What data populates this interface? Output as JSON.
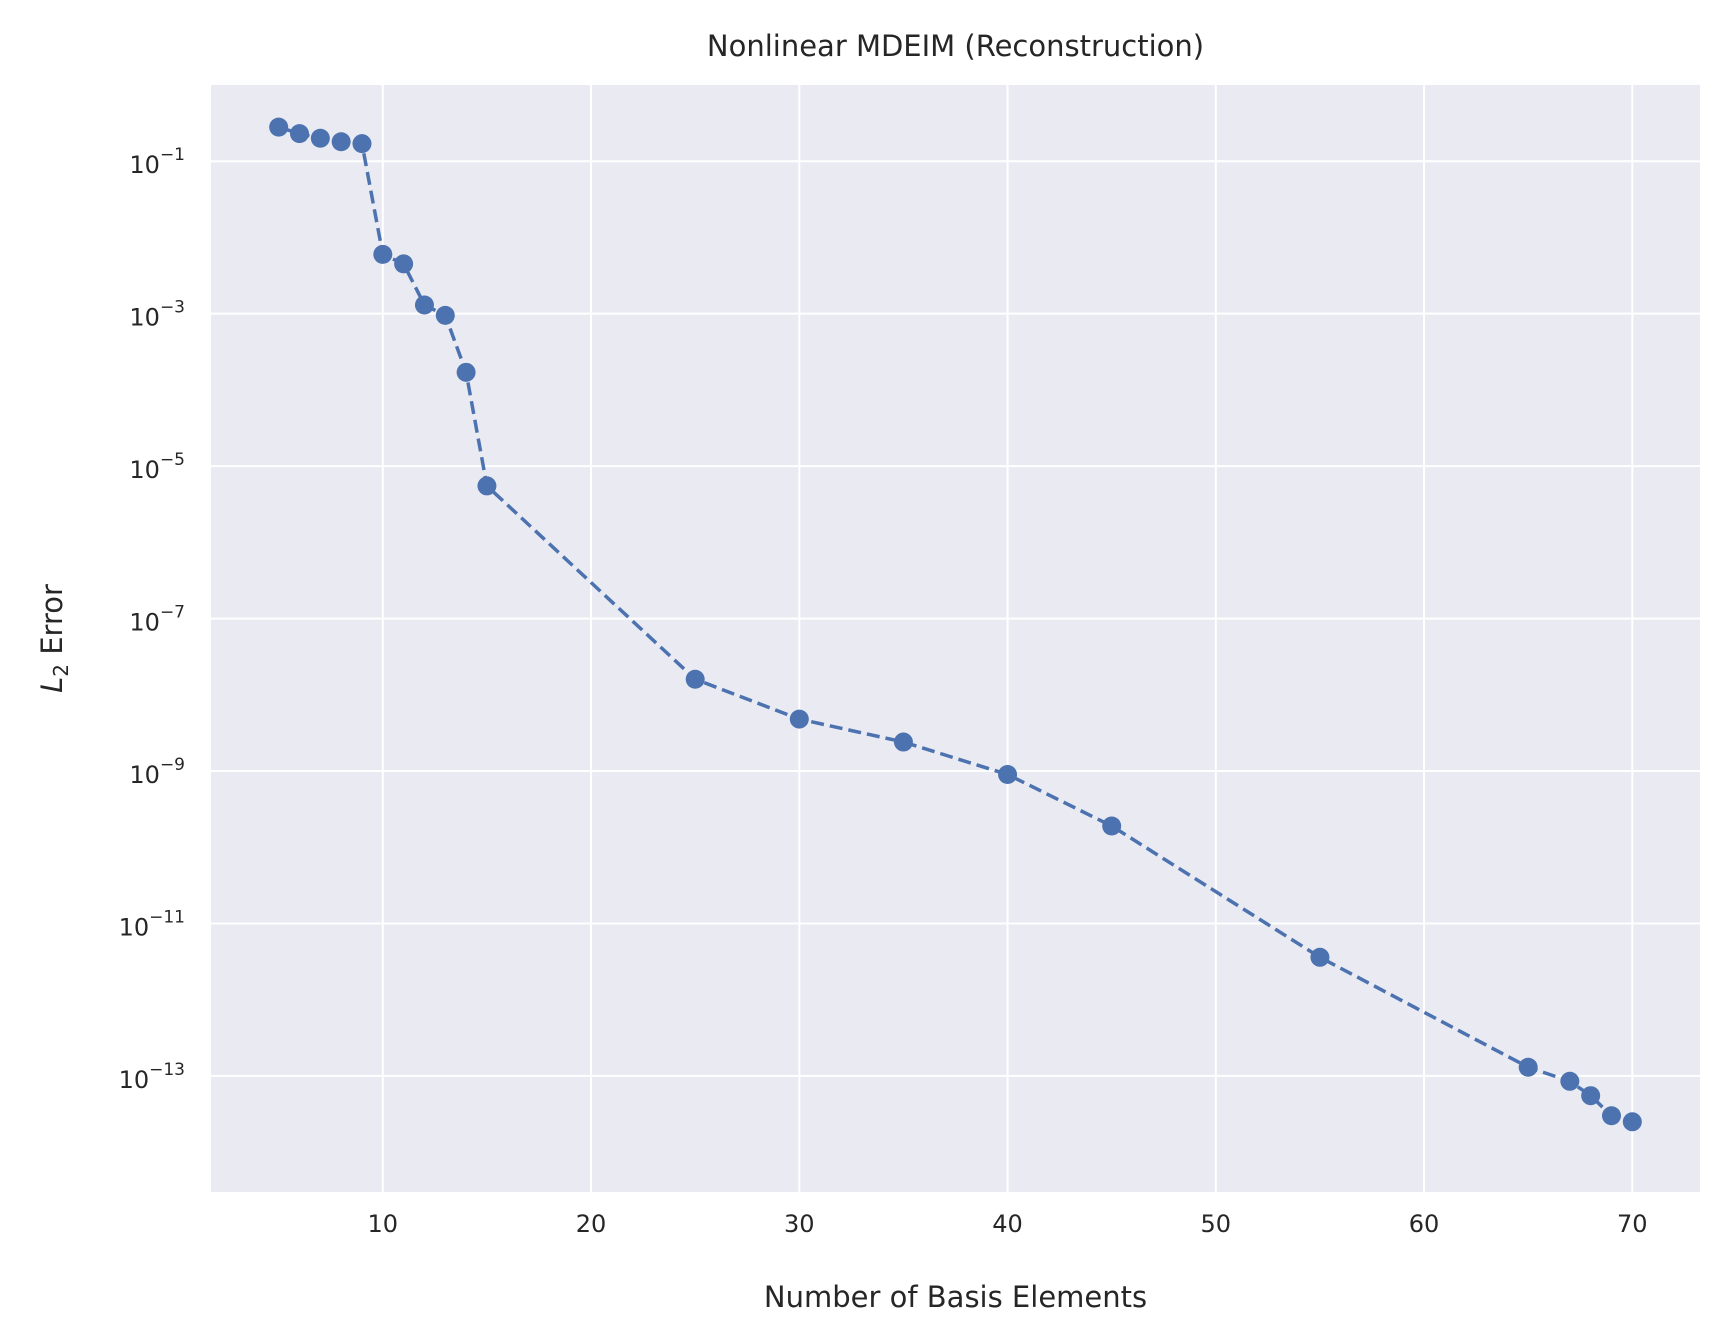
{
  "chart_data": {
    "type": "line",
    "title": "Nonlinear MDEIM (Reconstruction)",
    "xlabel": "Number of Basis Elements",
    "ylabel": {
      "base": "L",
      "subscript": "2",
      "rest": " Error"
    },
    "x_ticks": [
      10,
      20,
      30,
      40,
      50,
      60,
      70
    ],
    "y_ticks": [
      {
        "base": "10",
        "exponent": "−1",
        "value": 0.1
      },
      {
        "base": "10",
        "exponent": "−3",
        "value": 0.001
      },
      {
        "base": "10",
        "exponent": "−5",
        "value": 1e-05
      },
      {
        "base": "10",
        "exponent": "−7",
        "value": 1e-07
      },
      {
        "base": "10",
        "exponent": "−9",
        "value": 1e-09
      },
      {
        "base": "10",
        "exponent": "−11",
        "value": 1e-11
      },
      {
        "base": "10",
        "exponent": "−13",
        "value": 1e-13
      }
    ],
    "xlim": [
      1.75,
      73.25
    ],
    "ylim": [
      3e-15,
      1.0
    ],
    "yscale": "log",
    "grid": true,
    "colors": {
      "line": "#4c72b0",
      "background": "#eaeaf2",
      "grid": "#ffffff"
    },
    "line_style": "dashed",
    "marker": "circle",
    "series": [
      {
        "x": [
          5,
          6,
          7,
          8,
          9,
          10,
          11,
          12,
          13,
          14,
          15,
          25,
          30,
          35,
          40,
          45,
          55,
          65,
          67,
          68,
          69,
          70
        ],
        "y": [
          0.28,
          0.23,
          0.2,
          0.18,
          0.17,
          0.006,
          0.0045,
          0.0013,
          0.00095,
          0.00017,
          5.5e-06,
          1.6e-08,
          4.8e-09,
          2.4e-09,
          9e-10,
          1.9e-10,
          3.6e-12,
          1.3e-13,
          8.5e-14,
          5.5e-14,
          3e-14,
          2.5e-14
        ]
      }
    ]
  }
}
